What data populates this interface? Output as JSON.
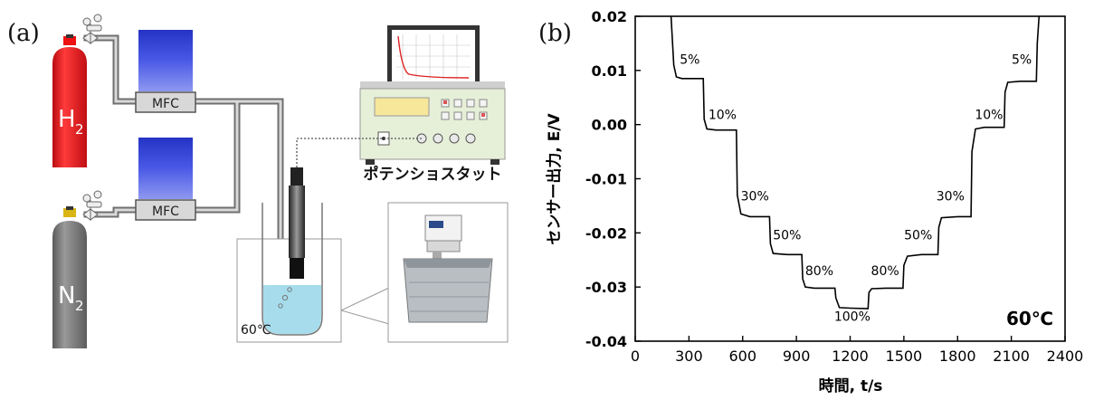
{
  "panel_a": {
    "label": "(a)",
    "h2_label": "H",
    "h2_sub": "2",
    "n2_label": "N",
    "n2_sub": "2",
    "mfc_top": "MFC",
    "mfc_bottom": "MFC",
    "potentiostat_label": "ポテンショスタット",
    "bath_temp": "60℃",
    "colors": {
      "h2_cylinder": "#e8141b",
      "n2_cylinder": "#7a7a7a",
      "mfc_flowmeter": "#2f3fd0",
      "potentiostat_body": "#e6efd8",
      "display": "#f6e79a",
      "water": "#a6dcec",
      "pipe": "#8a8a8a"
    }
  },
  "panel_b": {
    "label": "(b)",
    "temp_annotation": "60℃"
  },
  "chart_data": {
    "type": "line",
    "title": "",
    "xlabel": "時間, t/s",
    "ylabel": "センサー出力, E/V",
    "xlim": [
      0,
      2400
    ],
    "ylim": [
      -0.04,
      0.02
    ],
    "xticks": [
      "0",
      "300",
      "600",
      "900",
      "1200",
      "1500",
      "1800",
      "2100",
      "2400"
    ],
    "yticks": [
      "0.02",
      "0.01",
      "0.00",
      "-0.01",
      "-0.02",
      "-0.03",
      "-0.04"
    ],
    "grid": false,
    "series": [
      {
        "color": "#000000",
        "x": [
          200,
          215,
          230,
          260,
          300,
          380,
          385,
          400,
          450,
          565,
          570,
          590,
          640,
          750,
          755,
          770,
          850,
          930,
          935,
          950,
          1000,
          1115,
          1120,
          1140,
          1200,
          1300,
          1305,
          1320,
          1400,
          1495,
          1500,
          1520,
          1600,
          1690,
          1695,
          1710,
          1800,
          1875,
          1880,
          1900,
          1950,
          2060,
          2065,
          2080,
          2150,
          2240,
          2245,
          2255
        ],
        "y": [
          0.02,
          0.011,
          0.0088,
          0.0085,
          0.0085,
          0.0085,
          0.001,
          -0.0008,
          -0.001,
          -0.001,
          -0.013,
          -0.0165,
          -0.017,
          -0.017,
          -0.022,
          -0.0238,
          -0.024,
          -0.024,
          -0.0285,
          -0.03,
          -0.0302,
          -0.0302,
          -0.032,
          -0.0338,
          -0.0339,
          -0.034,
          -0.031,
          -0.0303,
          -0.0302,
          -0.0302,
          -0.026,
          -0.0243,
          -0.024,
          -0.024,
          -0.019,
          -0.0172,
          -0.017,
          -0.017,
          -0.005,
          -0.0008,
          -0.0005,
          -0.0005,
          0.006,
          0.0078,
          0.008,
          0.008,
          0.015,
          0.02
        ]
      }
    ],
    "annotations": [
      {
        "text": "5%",
        "x": 305,
        "y": 0.0112
      },
      {
        "text": "10%",
        "x": 487,
        "y": 0.001
      },
      {
        "text": "30%",
        "x": 668,
        "y": -0.014
      },
      {
        "text": "50%",
        "x": 848,
        "y": -0.0212
      },
      {
        "text": "80%",
        "x": 1028,
        "y": -0.0278
      },
      {
        "text": "100%",
        "x": 1212,
        "y": -0.0362
      },
      {
        "text": "80%",
        "x": 1395,
        "y": -0.0278
      },
      {
        "text": "50%",
        "x": 1580,
        "y": -0.0212
      },
      {
        "text": "30%",
        "x": 1760,
        "y": -0.014
      },
      {
        "text": "10%",
        "x": 1975,
        "y": 0.001
      },
      {
        "text": "5%",
        "x": 2158,
        "y": 0.0112
      }
    ]
  }
}
